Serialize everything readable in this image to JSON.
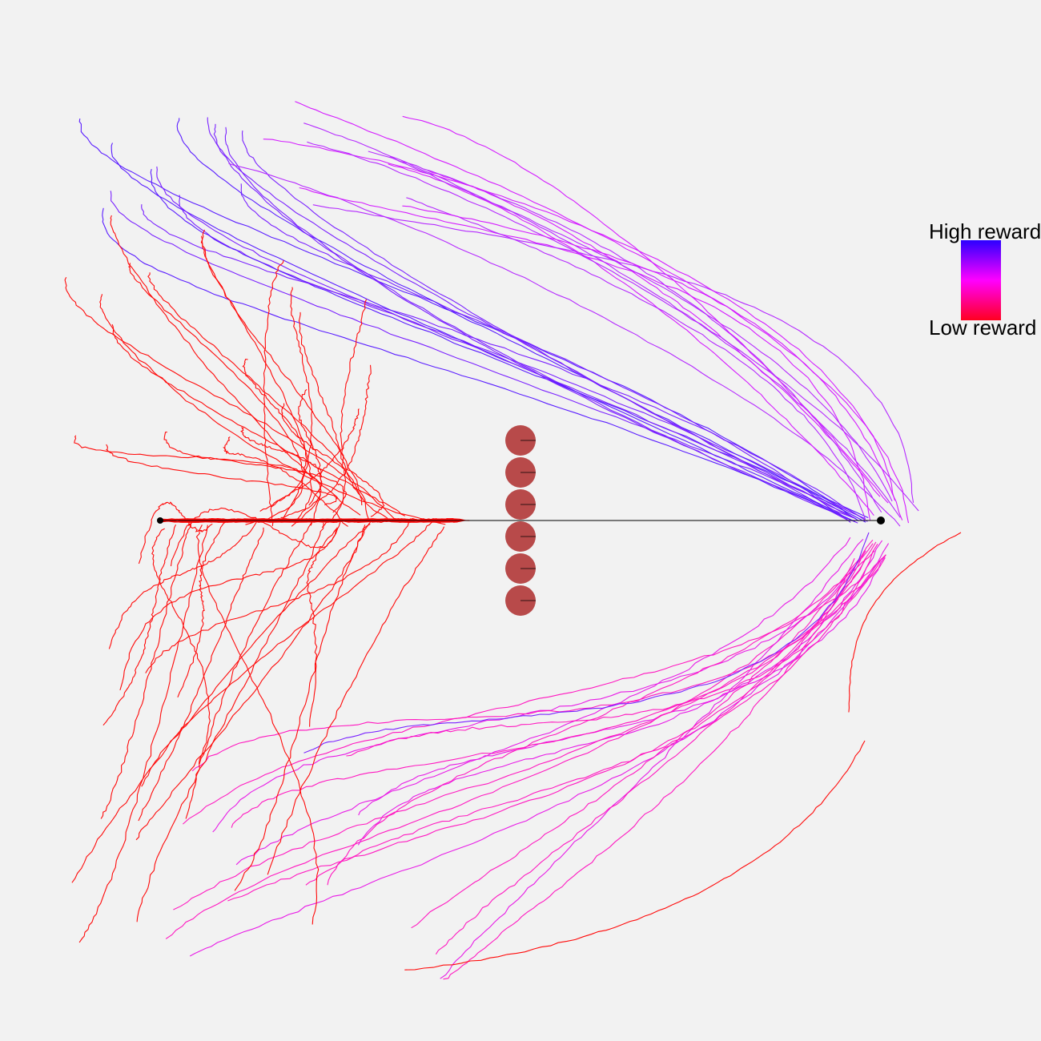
{
  "legend": {
    "high_label": "High reward",
    "low_label": "Low reward",
    "colors": {
      "high": "#2b00ff",
      "mid": "#ff00ff",
      "low": "#ff0020"
    }
  },
  "scene": {
    "obstacle_color": "#b84a4a",
    "obstacle_count": 6,
    "trajectory_groups": [
      {
        "name": "upper-high-reward",
        "color": "#7a22ff",
        "count": 14
      },
      {
        "name": "upper-mid-reward",
        "color": "#d41dff",
        "count": 14
      },
      {
        "name": "lower-mid-reward",
        "color": "#ff18c0",
        "count": 18
      },
      {
        "name": "low-reward-left",
        "color": "#ff0a0a",
        "count": 60
      }
    ]
  }
}
